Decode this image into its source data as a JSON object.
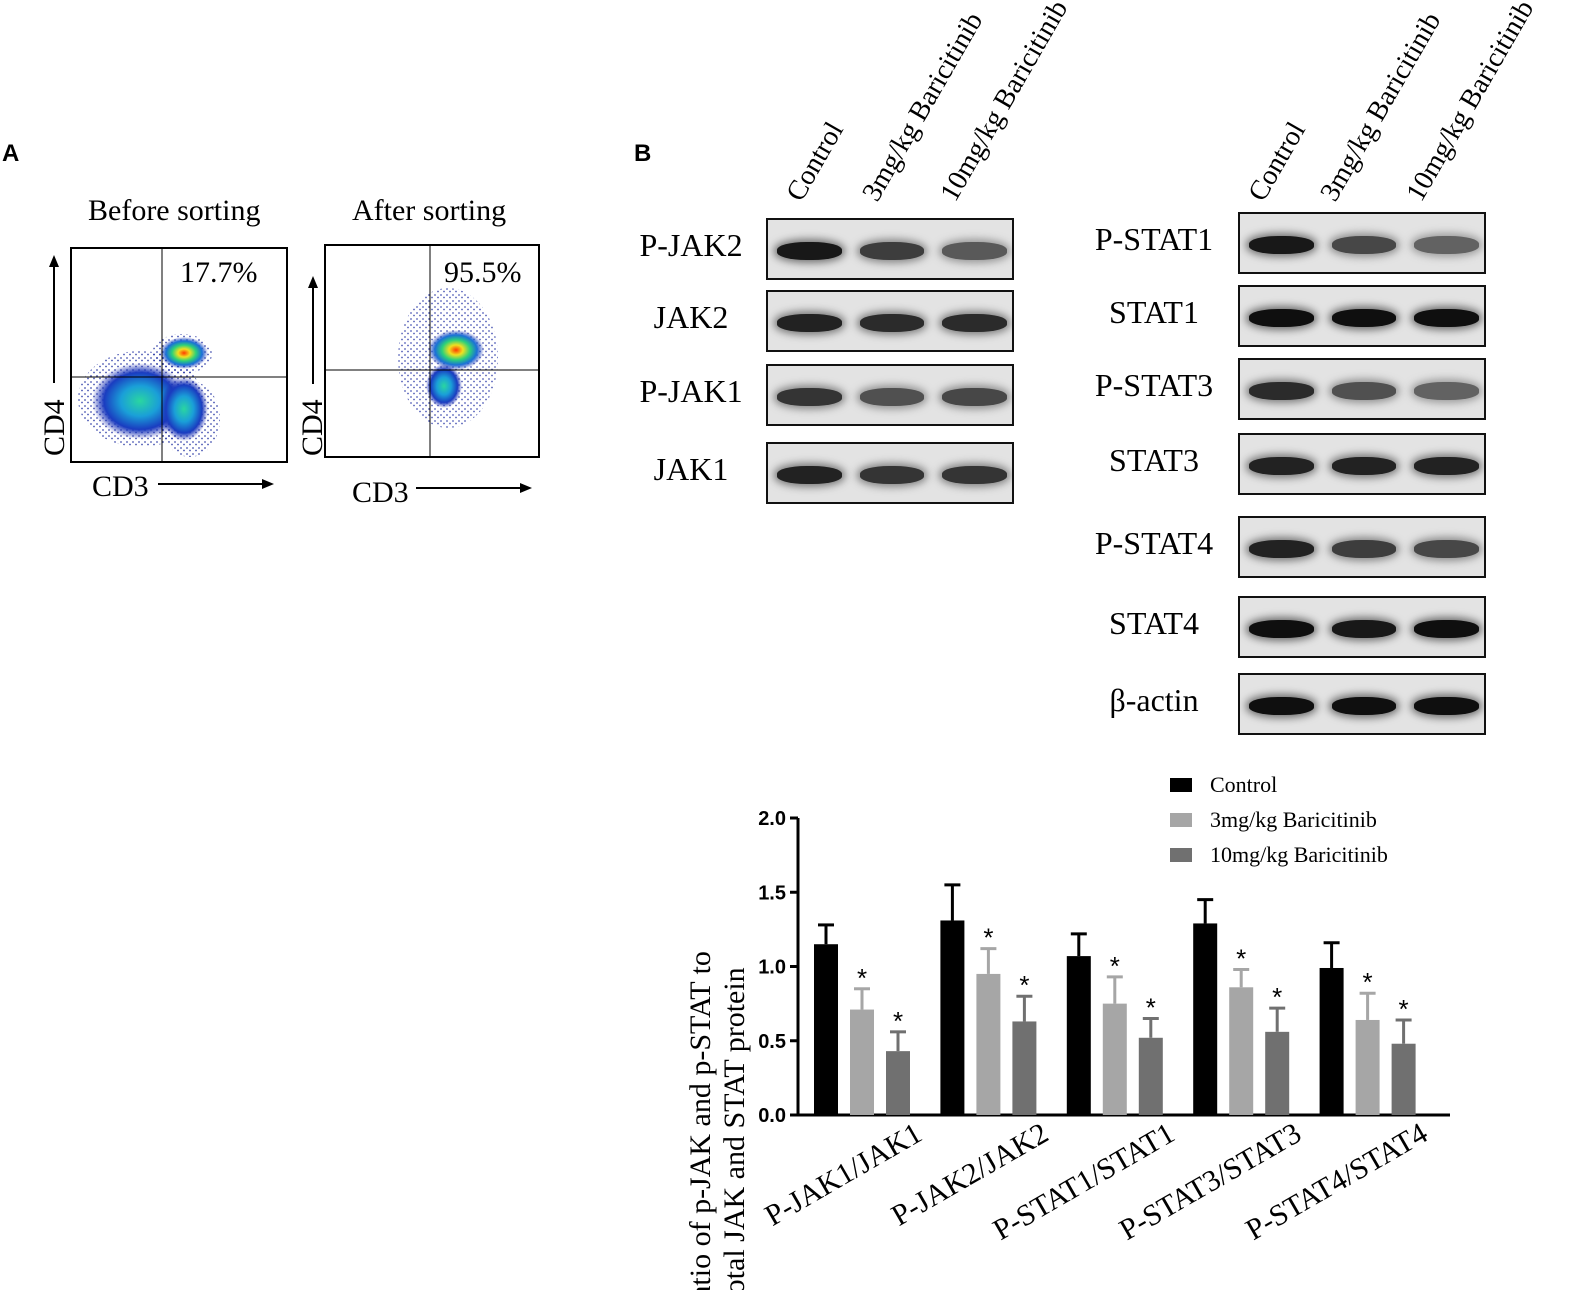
{
  "panels": {
    "a_letter": "A",
    "b_letter": "B"
  },
  "flow": {
    "before": {
      "title": "Before sorting",
      "percent": "17.7%",
      "y_axis": "CD4",
      "x_axis": "CD3"
    },
    "after": {
      "title": "After sorting",
      "percent": "95.5%",
      "y_axis": "CD4",
      "x_axis": "CD3"
    }
  },
  "blots": {
    "lanes": [
      "Control",
      "3mg/kg Baricitinib",
      "10mg/kg Baricitinib"
    ],
    "left": [
      {
        "label": "P-JAK2",
        "intensity": [
          0.95,
          0.75,
          0.6
        ]
      },
      {
        "label": "JAK2",
        "intensity": [
          0.9,
          0.85,
          0.85
        ]
      },
      {
        "label": "P-JAK1",
        "intensity": [
          0.8,
          0.65,
          0.7
        ]
      },
      {
        "label": "JAK1",
        "intensity": [
          0.9,
          0.8,
          0.8
        ]
      }
    ],
    "right": [
      {
        "label": "P-STAT1",
        "intensity": [
          0.95,
          0.7,
          0.55
        ]
      },
      {
        "label": "STAT1",
        "intensity": [
          1.0,
          1.0,
          1.0
        ]
      },
      {
        "label": "P-STAT3",
        "intensity": [
          0.85,
          0.65,
          0.55
        ]
      },
      {
        "label": "STAT3",
        "intensity": [
          0.9,
          0.9,
          0.9
        ]
      },
      {
        "label": "P-STAT4",
        "intensity": [
          0.9,
          0.75,
          0.7
        ]
      },
      {
        "label": "STAT4",
        "intensity": [
          1.0,
          0.95,
          1.0
        ]
      },
      {
        "label": "β-actin",
        "intensity": [
          1.0,
          1.0,
          1.0
        ]
      }
    ]
  },
  "chart_data": {
    "type": "bar",
    "ylabel_line1": "Ratio of p-JAK and p-STAT to",
    "ylabel_line2": "total JAK and STAT protein",
    "ylim": [
      0,
      2.0
    ],
    "yticks": [
      "0.0",
      "0.5",
      "1.0",
      "1.5",
      "2.0"
    ],
    "categories": [
      "P-JAK1/JAK1",
      "P-JAK2/JAK2",
      "P-STAT1/STAT1",
      "P-STAT3/STAT3",
      "P-STAT4/STAT4"
    ],
    "series": [
      {
        "name": "Control",
        "color": "#000000",
        "values": [
          1.15,
          1.31,
          1.07,
          1.29,
          0.99
        ],
        "errors": [
          0.13,
          0.24,
          0.15,
          0.16,
          0.17
        ],
        "sig": [
          false,
          false,
          false,
          false,
          false
        ]
      },
      {
        "name": "3mg/kg Baricitinib",
        "color": "#a6a6a6",
        "values": [
          0.71,
          0.95,
          0.75,
          0.86,
          0.64
        ],
        "errors": [
          0.14,
          0.17,
          0.18,
          0.12,
          0.18
        ],
        "sig": [
          true,
          true,
          true,
          true,
          true
        ]
      },
      {
        "name": "10mg/kg Baricitinib",
        "color": "#707070",
        "values": [
          0.43,
          0.63,
          0.52,
          0.56,
          0.48
        ],
        "errors": [
          0.13,
          0.17,
          0.13,
          0.16,
          0.16
        ],
        "sig": [
          true,
          true,
          true,
          true,
          true
        ]
      }
    ],
    "sig_mark": "*",
    "legend_position": "top-right",
    "grid": false
  }
}
